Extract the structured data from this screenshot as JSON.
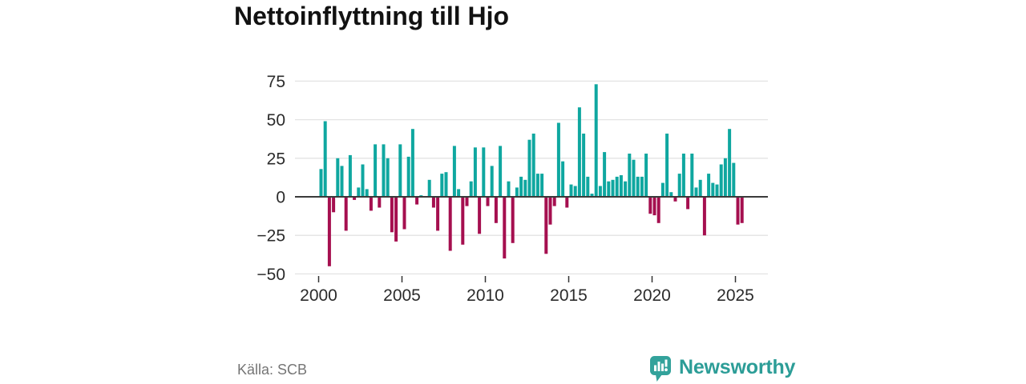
{
  "title": "Nettoinflyttning till Hjo",
  "source": "Källa: SCB",
  "brand": {
    "name": "Newsworthy",
    "color": "#2c9d97"
  },
  "colors": {
    "positive_bar": "#0fa7a0",
    "negative_bar": "#a50f4f",
    "grid": "#e3e3e3",
    "zero_line": "#3a3a3a",
    "axis_text": "#2b2b2b",
    "tick_mark": "#333333",
    "title_text": "#121212",
    "source_text": "#757575",
    "background": "#ffffff"
  },
  "chart_data": {
    "type": "bar",
    "title": "Nettoinflyttning till Hjo",
    "xlabel": "",
    "ylabel": "",
    "frequency": "quarterly",
    "start_period": "2000-Q1",
    "end_period": "2025-Q2",
    "x_tick_labels": [
      "2000",
      "2005",
      "2010",
      "2015",
      "2020",
      "2025"
    ],
    "x_tick_years": [
      2000,
      2005,
      2010,
      2015,
      2020,
      2025
    ],
    "y_ticks": [
      75,
      50,
      25,
      0,
      -25,
      -50
    ],
    "y_tick_labels": [
      "75",
      "50",
      "25",
      "0",
      "−25",
      "−50"
    ],
    "ylim": [
      -50,
      80
    ],
    "grid": true,
    "legend": false,
    "values": [
      18,
      49,
      -45,
      -10,
      25,
      20,
      -22,
      27,
      -2,
      6,
      21,
      5,
      -9,
      34,
      -7,
      34,
      25,
      -23,
      -29,
      34,
      -21,
      26,
      44,
      -5,
      1,
      0,
      11,
      -7,
      -22,
      15,
      16,
      -35,
      33,
      5,
      -31,
      -6,
      10,
      32,
      -24,
      32,
      -6,
      20,
      -17,
      33,
      -40,
      10,
      -30,
      6,
      13,
      11,
      37,
      41,
      15,
      15,
      -37,
      -18,
      -6,
      48,
      23,
      -7,
      8,
      7,
      58,
      41,
      13,
      2,
      73,
      7,
      29,
      10,
      11,
      13,
      14,
      10,
      28,
      24,
      13,
      13,
      28,
      -11,
      -12,
      -17,
      9,
      41,
      3,
      -3,
      15,
      28,
      -8,
      28,
      6,
      11,
      -25,
      15,
      9,
      8,
      21,
      25,
      44,
      22,
      -18,
      -17
    ]
  }
}
